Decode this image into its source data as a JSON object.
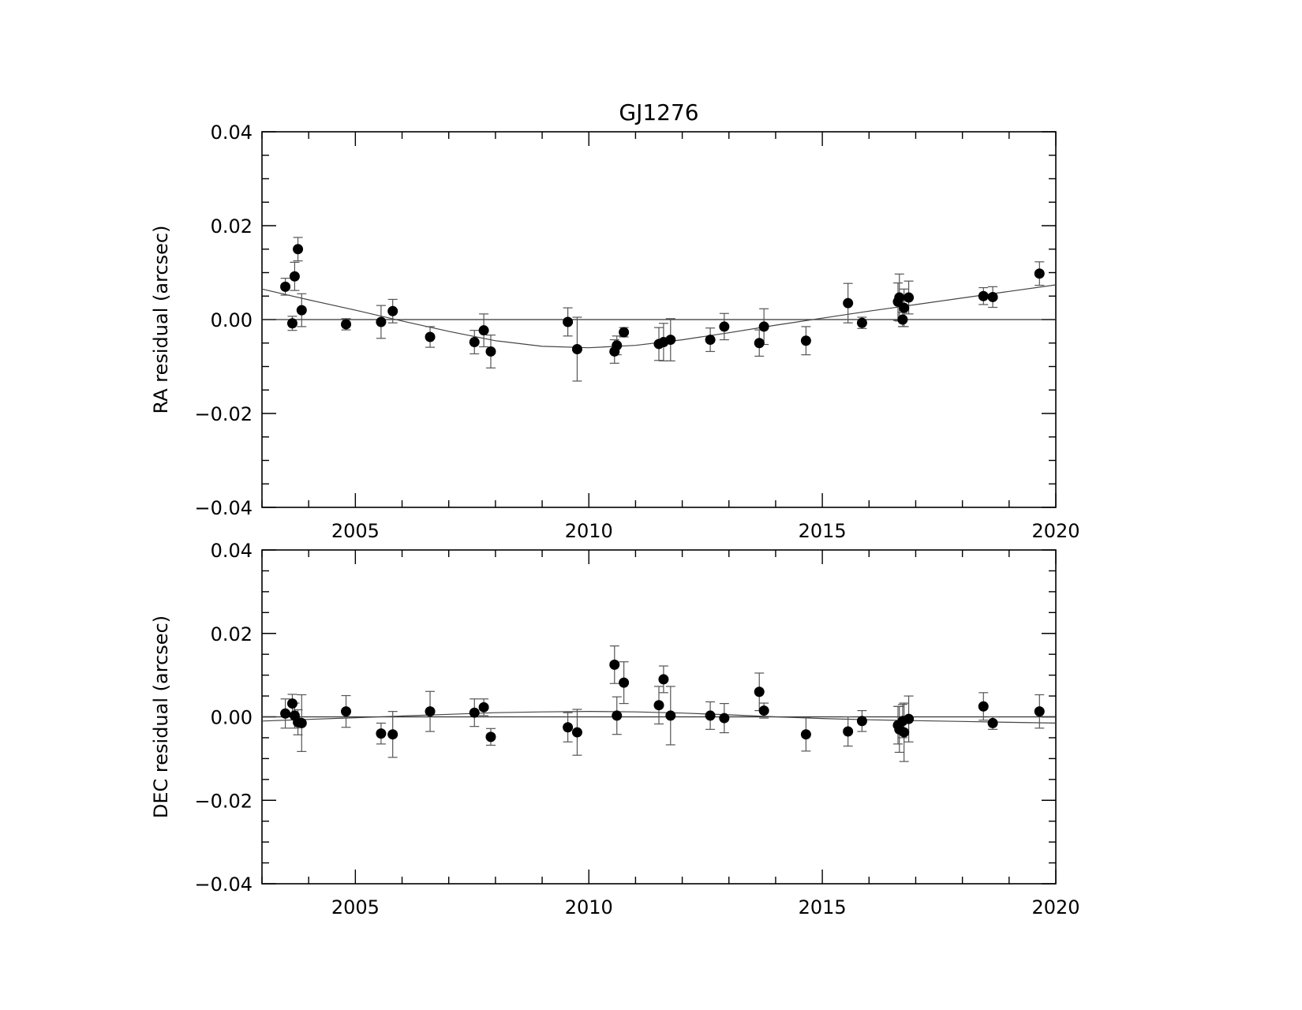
{
  "chart_data": [
    {
      "type": "scatter",
      "title": "GJ1276",
      "xlabel": "",
      "ylabel": "RA residual (arcsec)",
      "xlim": [
        2003.0,
        2020.0
      ],
      "ylim": [
        -0.04,
        0.04
      ],
      "x_ticks": [
        2005,
        2010,
        2015,
        2020
      ],
      "x_tick_labels": [
        "2005",
        "2010",
        "2015",
        "2020"
      ],
      "y_ticks": [
        0.04,
        0.02,
        0.0,
        -0.02,
        -0.04
      ],
      "y_tick_labels": [
        "0.04",
        "0.02",
        "0.00",
        "−0.02",
        "−0.04"
      ],
      "grid": false,
      "zero_line": true,
      "color": "#000000",
      "errorbar_color": "#555555",
      "points": [
        {
          "x": 2003.5,
          "y": 0.007,
          "err": 0.0018
        },
        {
          "x": 2003.65,
          "y": -0.0008,
          "err": 0.0015
        },
        {
          "x": 2003.7,
          "y": 0.0092,
          "err": 0.003
        },
        {
          "x": 2003.77,
          "y": 0.015,
          "err": 0.0025
        },
        {
          "x": 2003.85,
          "y": 0.002,
          "err": 0.0035
        },
        {
          "x": 2004.8,
          "y": -0.001,
          "err": 0.0012
        },
        {
          "x": 2005.55,
          "y": -0.0005,
          "err": 0.0035
        },
        {
          "x": 2005.8,
          "y": 0.0018,
          "err": 0.0025
        },
        {
          "x": 2006.6,
          "y": -0.0037,
          "err": 0.0022
        },
        {
          "x": 2007.55,
          "y": -0.0048,
          "err": 0.0025
        },
        {
          "x": 2007.75,
          "y": -0.0023,
          "err": 0.0035
        },
        {
          "x": 2007.9,
          "y": -0.0068,
          "err": 0.0035
        },
        {
          "x": 2009.55,
          "y": -0.0005,
          "err": 0.003
        },
        {
          "x": 2009.75,
          "y": -0.0063,
          "err": 0.0068
        },
        {
          "x": 2010.55,
          "y": -0.0068,
          "err": 0.0025
        },
        {
          "x": 2010.6,
          "y": -0.0055,
          "err": 0.002
        },
        {
          "x": 2010.75,
          "y": -0.0027,
          "err": 0.001
        },
        {
          "x": 2011.5,
          "y": -0.0052,
          "err": 0.0035
        },
        {
          "x": 2011.6,
          "y": -0.0048,
          "err": 0.004
        },
        {
          "x": 2011.75,
          "y": -0.0043,
          "err": 0.0045
        },
        {
          "x": 2012.6,
          "y": -0.0043,
          "err": 0.0025
        },
        {
          "x": 2012.9,
          "y": -0.0015,
          "err": 0.0028
        },
        {
          "x": 2013.65,
          "y": -0.005,
          "err": 0.0028
        },
        {
          "x": 2013.75,
          "y": -0.0015,
          "err": 0.0038
        },
        {
          "x": 2014.65,
          "y": -0.0045,
          "err": 0.003
        },
        {
          "x": 2015.55,
          "y": 0.0035,
          "err": 0.0042
        },
        {
          "x": 2015.85,
          "y": -0.0007,
          "err": 0.0012
        },
        {
          "x": 2016.62,
          "y": 0.0038,
          "err": 0.004
        },
        {
          "x": 2016.65,
          "y": 0.0047,
          "err": 0.005
        },
        {
          "x": 2016.72,
          "y": 0.0,
          "err": 0.0015
        },
        {
          "x": 2016.75,
          "y": 0.0025,
          "err": 0.004
        },
        {
          "x": 2016.85,
          "y": 0.0047,
          "err": 0.0035
        },
        {
          "x": 2018.45,
          "y": 0.005,
          "err": 0.0018
        },
        {
          "x": 2018.65,
          "y": 0.0048,
          "err": 0.0022
        },
        {
          "x": 2019.65,
          "y": 0.0098,
          "err": 0.0025
        }
      ],
      "fit_curve": {
        "x": [
          2003.0,
          2004.0,
          2005.0,
          2006.0,
          2007.0,
          2008.0,
          2009.0,
          2010.0,
          2011.0,
          2012.0,
          2013.0,
          2014.0,
          2015.0,
          2016.0,
          2017.0,
          2018.0,
          2019.0,
          2020.0
        ],
        "y": [
          0.0065,
          0.0042,
          0.002,
          -0.0003,
          -0.0025,
          -0.0045,
          -0.0057,
          -0.006,
          -0.0055,
          -0.0043,
          -0.0028,
          -0.0012,
          0.0003,
          0.0018,
          0.0032,
          0.0046,
          0.006,
          0.0074
        ]
      }
    },
    {
      "type": "scatter",
      "title": "",
      "xlabel": "",
      "ylabel": "DEC residual (arcsec)",
      "xlim": [
        2003.0,
        2020.0
      ],
      "ylim": [
        -0.04,
        0.04
      ],
      "x_ticks": [
        2005,
        2010,
        2015,
        2020
      ],
      "x_tick_labels": [
        "2005",
        "2010",
        "2015",
        "2020"
      ],
      "y_ticks": [
        0.04,
        0.02,
        0.0,
        -0.02,
        -0.04
      ],
      "y_tick_labels": [
        "0.04",
        "0.02",
        "0.00",
        "−0.02",
        "−0.04"
      ],
      "grid": false,
      "zero_line": true,
      "color": "#000000",
      "errorbar_color": "#555555",
      "points": [
        {
          "x": 2003.5,
          "y": 0.0008,
          "err": 0.0035
        },
        {
          "x": 2003.65,
          "y": 0.0032,
          "err": 0.0022
        },
        {
          "x": 2003.7,
          "y": 0.0003,
          "err": 0.003
        },
        {
          "x": 2003.77,
          "y": -0.0013,
          "err": 0.003
        },
        {
          "x": 2003.85,
          "y": -0.0015,
          "err": 0.0068
        },
        {
          "x": 2004.8,
          "y": 0.0013,
          "err": 0.0038
        },
        {
          "x": 2005.55,
          "y": -0.004,
          "err": 0.0025
        },
        {
          "x": 2005.8,
          "y": -0.0042,
          "err": 0.0055
        },
        {
          "x": 2006.6,
          "y": 0.0013,
          "err": 0.0048
        },
        {
          "x": 2007.55,
          "y": 0.001,
          "err": 0.0033
        },
        {
          "x": 2007.75,
          "y": 0.0023,
          "err": 0.002
        },
        {
          "x": 2007.9,
          "y": -0.0048,
          "err": 0.002
        },
        {
          "x": 2009.55,
          "y": -0.0025,
          "err": 0.0035
        },
        {
          "x": 2009.75,
          "y": -0.0037,
          "err": 0.0055
        },
        {
          "x": 2010.55,
          "y": 0.0125,
          "err": 0.0045
        },
        {
          "x": 2010.6,
          "y": 0.0003,
          "err": 0.0045
        },
        {
          "x": 2010.75,
          "y": 0.0082,
          "err": 0.005
        },
        {
          "x": 2011.5,
          "y": 0.0028,
          "err": 0.0045
        },
        {
          "x": 2011.6,
          "y": 0.009,
          "err": 0.0032
        },
        {
          "x": 2011.75,
          "y": 0.0003,
          "err": 0.007
        },
        {
          "x": 2012.6,
          "y": 0.0003,
          "err": 0.0033
        },
        {
          "x": 2012.9,
          "y": -0.0003,
          "err": 0.0035
        },
        {
          "x": 2013.65,
          "y": 0.006,
          "err": 0.0045
        },
        {
          "x": 2013.75,
          "y": 0.0015,
          "err": 0.0018
        },
        {
          "x": 2014.65,
          "y": -0.0042,
          "err": 0.004
        },
        {
          "x": 2015.55,
          "y": -0.0035,
          "err": 0.0035
        },
        {
          "x": 2015.85,
          "y": -0.001,
          "err": 0.0025
        },
        {
          "x": 2016.62,
          "y": -0.002,
          "err": 0.0045
        },
        {
          "x": 2016.65,
          "y": -0.003,
          "err": 0.0055
        },
        {
          "x": 2016.72,
          "y": -0.001,
          "err": 0.004
        },
        {
          "x": 2016.75,
          "y": -0.0037,
          "err": 0.007
        },
        {
          "x": 2016.85,
          "y": -0.0005,
          "err": 0.0055
        },
        {
          "x": 2018.45,
          "y": 0.0025,
          "err": 0.0033
        },
        {
          "x": 2018.65,
          "y": -0.0015,
          "err": 0.0015
        },
        {
          "x": 2019.65,
          "y": 0.0013,
          "err": 0.004
        }
      ],
      "fit_curve": {
        "x": [
          2003.0,
          2004.0,
          2005.0,
          2006.0,
          2007.0,
          2008.0,
          2009.0,
          2010.0,
          2011.0,
          2012.0,
          2013.0,
          2014.0,
          2015.0,
          2016.0,
          2017.0,
          2018.0,
          2019.0,
          2020.0
        ],
        "y": [
          -0.001,
          -0.0006,
          -0.0002,
          0.0002,
          0.0006,
          0.001,
          0.0012,
          0.0013,
          0.0012,
          0.0009,
          0.0005,
          0.0,
          -0.0004,
          -0.0007,
          -0.0009,
          -0.0011,
          -0.0013,
          -0.0015
        ]
      }
    }
  ]
}
